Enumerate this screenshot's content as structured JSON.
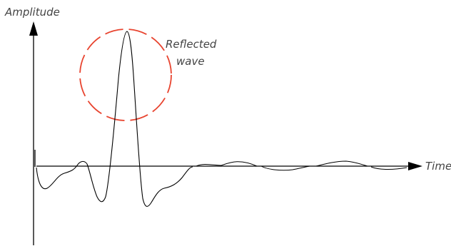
{
  "diagram": {
    "axes": {
      "y_label": "Amplitude",
      "x_label": "Time"
    },
    "annotation": {
      "line1": "Reflected",
      "line2": "wave",
      "circle_color": "#e8442f",
      "circle_style": "dashed"
    },
    "colors": {
      "axis": "#000000",
      "wave": "#000000",
      "text": "#444444"
    }
  }
}
